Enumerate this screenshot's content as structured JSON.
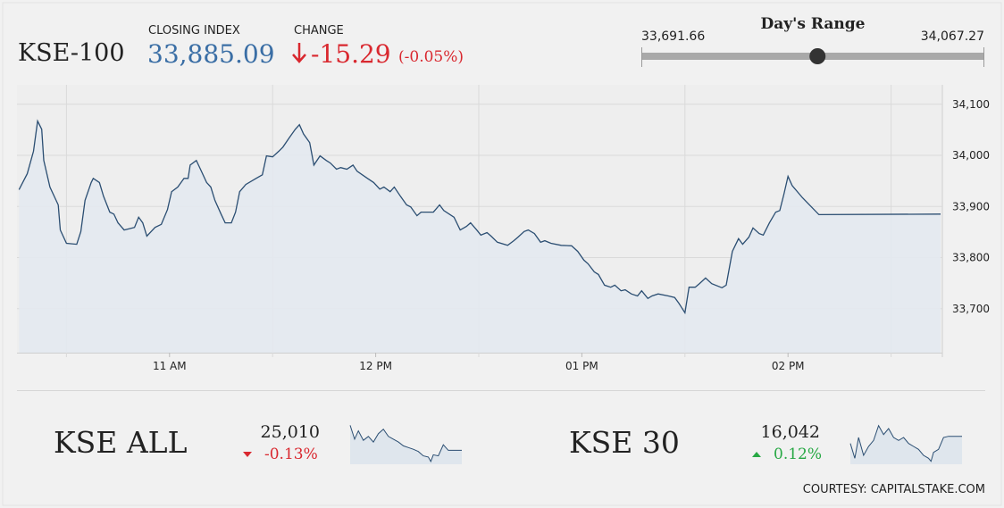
{
  "quote": {
    "name": "KSE-100",
    "closing_index_label": "CLOSING INDEX",
    "closing_index": {
      "value": 33885.09,
      "label": "33,885.09"
    },
    "change_label": "CHANGE",
    "change": "-15.29",
    "change_percent": "(-0.05%)"
  },
  "days_range": {
    "title": "Day's Range",
    "low": {
      "value": 33691.66,
      "label": "33,691.66"
    },
    "high": {
      "value": 34067.27,
      "label": "34,067.27"
    }
  },
  "courtesy": "COURTESY: CAPITALSTAKE.COM",
  "chart_data": [
    {
      "type": "line",
      "color": "#2b4e72",
      "fill": "#e3e9f0",
      "x": [
        10.27,
        10.31,
        10.34,
        10.36,
        10.38,
        10.39,
        10.42,
        10.46,
        10.47,
        10.5,
        10.55,
        10.57,
        10.59,
        10.62,
        10.63,
        10.66,
        10.68,
        10.71,
        10.73,
        10.75,
        10.78,
        10.83,
        10.85,
        10.87,
        10.89,
        10.93,
        10.96,
        10.99,
        11.01,
        11.04,
        11.07,
        11.09,
        11.1,
        11.13,
        11.15,
        11.18,
        11.2,
        11.22,
        11.25,
        11.27,
        11.3,
        11.32,
        11.34,
        11.37,
        11.42,
        11.45,
        11.47,
        11.5,
        11.53,
        11.55,
        11.58,
        11.61,
        11.63,
        11.65,
        11.68,
        11.7,
        11.73,
        11.76,
        11.78,
        11.81,
        11.83,
        11.86,
        11.89,
        11.91,
        11.96,
        11.99,
        12.02,
        12.04,
        12.07,
        12.09,
        12.12,
        12.15,
        12.17,
        12.2,
        12.22,
        12.28,
        12.31,
        12.33,
        12.38,
        12.41,
        12.44,
        12.46,
        12.49,
        12.51,
        12.54,
        12.56,
        12.59,
        12.64,
        12.67,
        12.69,
        12.72,
        12.74,
        12.77,
        12.8,
        12.82,
        12.85,
        12.9,
        12.95,
        12.98,
        13.01,
        13.03,
        13.06,
        13.08,
        13.11,
        13.14,
        13.16,
        13.19,
        13.21,
        13.24,
        13.27,
        13.29,
        13.32,
        13.34,
        13.37,
        13.42,
        13.45,
        13.47,
        13.5,
        13.52,
        13.55,
        13.57,
        13.6,
        13.63,
        13.68,
        13.7,
        13.73,
        13.76,
        13.78,
        13.81,
        13.83,
        13.86,
        13.88,
        13.91,
        13.94,
        13.96,
        13.98,
        14.0,
        14.02,
        14.07,
        14.15,
        14.74
      ],
      "values": [
        33933,
        33964,
        34008,
        34067,
        34051,
        33990,
        33938,
        33903,
        33854,
        33828,
        33826,
        33851,
        33912,
        33947,
        33955,
        33947,
        33920,
        33889,
        33885,
        33868,
        33854,
        33859,
        33879,
        33868,
        33842,
        33859,
        33865,
        33894,
        33929,
        33938,
        33955,
        33955,
        33981,
        33990,
        33973,
        33947,
        33938,
        33912,
        33885,
        33868,
        33868,
        33889,
        33929,
        33943,
        33955,
        33962,
        33999,
        33997,
        34008,
        34016,
        34034,
        34051,
        34060,
        34042,
        34025,
        33981,
        33999,
        33990,
        33985,
        33973,
        33976,
        33973,
        33981,
        33969,
        33955,
        33947,
        33934,
        33938,
        33929,
        33938,
        33920,
        33903,
        33899,
        33882,
        33889,
        33889,
        33903,
        33892,
        33879,
        33854,
        33861,
        33868,
        33854,
        33844,
        33849,
        33842,
        33830,
        33824,
        33833,
        33840,
        33851,
        33854,
        33847,
        33830,
        33833,
        33828,
        33824,
        33823,
        33812,
        33795,
        33788,
        33772,
        33767,
        33746,
        33742,
        33746,
        33735,
        33737,
        33729,
        33725,
        33735,
        33720,
        33725,
        33729,
        33725,
        33722,
        33711,
        33692,
        33742,
        33742,
        33749,
        33760,
        33749,
        33741,
        33746,
        33812,
        33837,
        33826,
        33840,
        33858,
        33847,
        33844,
        33868,
        33889,
        33892,
        33924,
        33959,
        33941,
        33917,
        33884,
        33885
      ],
      "xlim": [
        10.26,
        14.74
      ],
      "xticks": [
        {
          "value": 11,
          "label": "11 AM"
        },
        {
          "value": 12,
          "label": "12 PM"
        },
        {
          "value": 13,
          "label": "01 PM"
        },
        {
          "value": 14,
          "label": "02 PM"
        }
      ],
      "x_grid": [
        10.5,
        11.5,
        12.5,
        13.5,
        14.5
      ],
      "ylim": [
        33614,
        34138
      ],
      "yticks": [
        {
          "value": 33700,
          "label": "33,700"
        },
        {
          "value": 33800,
          "label": "33,800"
        },
        {
          "value": 33900,
          "label": "33,900"
        },
        {
          "value": 34000,
          "label": "34,000"
        },
        {
          "value": 34100,
          "label": "34,100"
        }
      ],
      "grid": true
    },
    {
      "type": "line",
      "title": "KSE ALL",
      "index_value": "25,010",
      "change": "-0.13%",
      "direction": "down",
      "color": "#2b4e72",
      "fill": "#dde4ec",
      "x": [
        10.27,
        10.45,
        10.6,
        10.8,
        11.0,
        11.2,
        11.4,
        11.6,
        11.8,
        12.0,
        12.2,
        12.4,
        12.6,
        12.8,
        13.0,
        13.2,
        13.4,
        13.5,
        13.6,
        13.8,
        14.0,
        14.2,
        14.74
      ],
      "values": [
        25055,
        25030,
        25045,
        25028,
        25035,
        25025,
        25040,
        25048,
        25035,
        25030,
        25025,
        25018,
        25015,
        25012,
        25008,
        25000,
        24998,
        24990,
        25002,
        25000,
        25020,
        25010,
        25010
      ],
      "xlim": [
        10.27,
        14.74
      ],
      "ylim": [
        24985,
        25062
      ]
    },
    {
      "type": "line",
      "title": "KSE 30",
      "index_value": "16,042",
      "change": "0.12%",
      "direction": "up",
      "color": "#2b4e72",
      "fill": "#dde4ec",
      "x": [
        10.27,
        10.45,
        10.6,
        10.8,
        11.0,
        11.2,
        11.4,
        11.6,
        11.8,
        12.0,
        12.2,
        12.4,
        12.6,
        12.8,
        13.0,
        13.2,
        13.4,
        13.5,
        13.6,
        13.8,
        14.0,
        14.2,
        14.74
      ],
      "values": [
        16030,
        16005,
        16040,
        16010,
        16025,
        16035,
        16060,
        16045,
        16055,
        16040,
        16035,
        16040,
        16030,
        16025,
        16020,
        16010,
        16005,
        16000,
        16015,
        16020,
        16040,
        16042,
        16042
      ],
      "xlim": [
        10.27,
        14.74
      ],
      "ylim": [
        15995,
        16067
      ]
    }
  ]
}
